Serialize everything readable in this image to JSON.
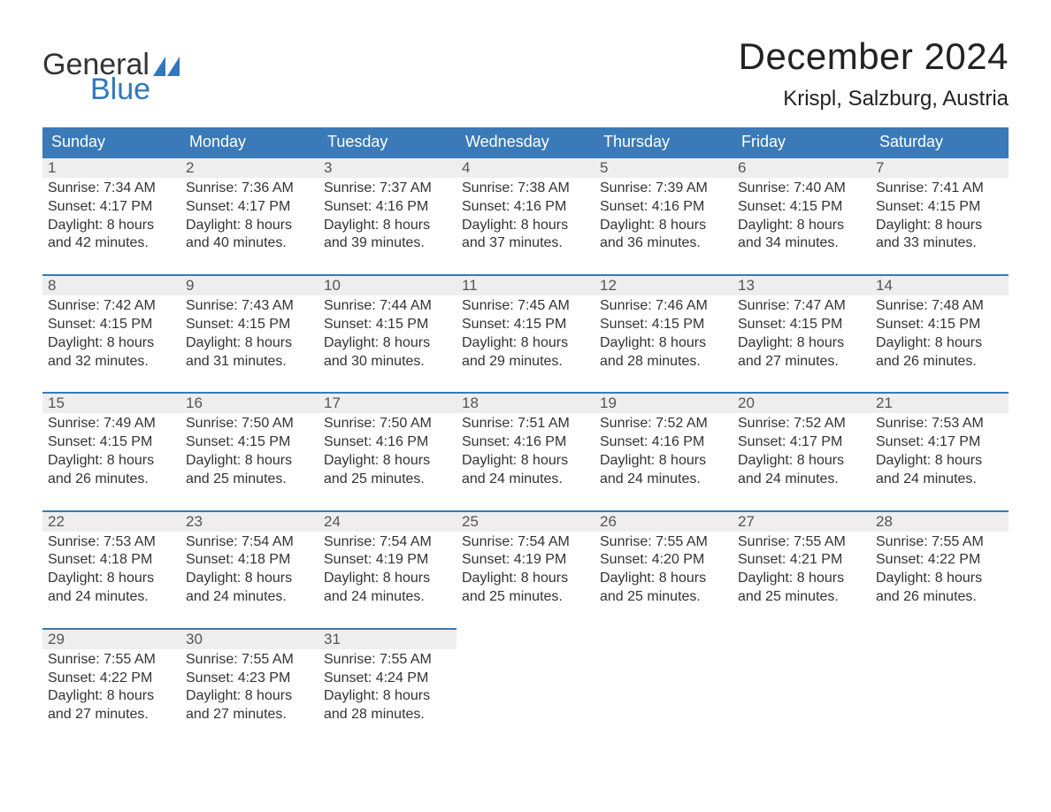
{
  "logo": {
    "text1": "General",
    "text2": "Blue",
    "color_text": "#333333",
    "color_blue": "#2f78bf"
  },
  "title": "December 2024",
  "location": "Krispl, Salzburg, Austria",
  "colors": {
    "header_bg": "#3a7ab8",
    "header_text": "#ffffff",
    "daynum_bg": "#eeeeee",
    "daynum_border": "#3a7ab8",
    "body_text": "#333333",
    "page_bg": "#ffffff"
  },
  "typography": {
    "title_fontsize": 42,
    "location_fontsize": 24,
    "header_fontsize": 18,
    "daynum_fontsize": 17,
    "content_fontsize": 16
  },
  "daysOfWeek": [
    "Sunday",
    "Monday",
    "Tuesday",
    "Wednesday",
    "Thursday",
    "Friday",
    "Saturday"
  ],
  "weeks": [
    [
      {
        "num": "1",
        "sunrise": "Sunrise: 7:34 AM",
        "sunset": "Sunset: 4:17 PM",
        "dl1": "Daylight: 8 hours",
        "dl2": "and 42 minutes."
      },
      {
        "num": "2",
        "sunrise": "Sunrise: 7:36 AM",
        "sunset": "Sunset: 4:17 PM",
        "dl1": "Daylight: 8 hours",
        "dl2": "and 40 minutes."
      },
      {
        "num": "3",
        "sunrise": "Sunrise: 7:37 AM",
        "sunset": "Sunset: 4:16 PM",
        "dl1": "Daylight: 8 hours",
        "dl2": "and 39 minutes."
      },
      {
        "num": "4",
        "sunrise": "Sunrise: 7:38 AM",
        "sunset": "Sunset: 4:16 PM",
        "dl1": "Daylight: 8 hours",
        "dl2": "and 37 minutes."
      },
      {
        "num": "5",
        "sunrise": "Sunrise: 7:39 AM",
        "sunset": "Sunset: 4:16 PM",
        "dl1": "Daylight: 8 hours",
        "dl2": "and 36 minutes."
      },
      {
        "num": "6",
        "sunrise": "Sunrise: 7:40 AM",
        "sunset": "Sunset: 4:15 PM",
        "dl1": "Daylight: 8 hours",
        "dl2": "and 34 minutes."
      },
      {
        "num": "7",
        "sunrise": "Sunrise: 7:41 AM",
        "sunset": "Sunset: 4:15 PM",
        "dl1": "Daylight: 8 hours",
        "dl2": "and 33 minutes."
      }
    ],
    [
      {
        "num": "8",
        "sunrise": "Sunrise: 7:42 AM",
        "sunset": "Sunset: 4:15 PM",
        "dl1": "Daylight: 8 hours",
        "dl2": "and 32 minutes."
      },
      {
        "num": "9",
        "sunrise": "Sunrise: 7:43 AM",
        "sunset": "Sunset: 4:15 PM",
        "dl1": "Daylight: 8 hours",
        "dl2": "and 31 minutes."
      },
      {
        "num": "10",
        "sunrise": "Sunrise: 7:44 AM",
        "sunset": "Sunset: 4:15 PM",
        "dl1": "Daylight: 8 hours",
        "dl2": "and 30 minutes."
      },
      {
        "num": "11",
        "sunrise": "Sunrise: 7:45 AM",
        "sunset": "Sunset: 4:15 PM",
        "dl1": "Daylight: 8 hours",
        "dl2": "and 29 minutes."
      },
      {
        "num": "12",
        "sunrise": "Sunrise: 7:46 AM",
        "sunset": "Sunset: 4:15 PM",
        "dl1": "Daylight: 8 hours",
        "dl2": "and 28 minutes."
      },
      {
        "num": "13",
        "sunrise": "Sunrise: 7:47 AM",
        "sunset": "Sunset: 4:15 PM",
        "dl1": "Daylight: 8 hours",
        "dl2": "and 27 minutes."
      },
      {
        "num": "14",
        "sunrise": "Sunrise: 7:48 AM",
        "sunset": "Sunset: 4:15 PM",
        "dl1": "Daylight: 8 hours",
        "dl2": "and 26 minutes."
      }
    ],
    [
      {
        "num": "15",
        "sunrise": "Sunrise: 7:49 AM",
        "sunset": "Sunset: 4:15 PM",
        "dl1": "Daylight: 8 hours",
        "dl2": "and 26 minutes."
      },
      {
        "num": "16",
        "sunrise": "Sunrise: 7:50 AM",
        "sunset": "Sunset: 4:15 PM",
        "dl1": "Daylight: 8 hours",
        "dl2": "and 25 minutes."
      },
      {
        "num": "17",
        "sunrise": "Sunrise: 7:50 AM",
        "sunset": "Sunset: 4:16 PM",
        "dl1": "Daylight: 8 hours",
        "dl2": "and 25 minutes."
      },
      {
        "num": "18",
        "sunrise": "Sunrise: 7:51 AM",
        "sunset": "Sunset: 4:16 PM",
        "dl1": "Daylight: 8 hours",
        "dl2": "and 24 minutes."
      },
      {
        "num": "19",
        "sunrise": "Sunrise: 7:52 AM",
        "sunset": "Sunset: 4:16 PM",
        "dl1": "Daylight: 8 hours",
        "dl2": "and 24 minutes."
      },
      {
        "num": "20",
        "sunrise": "Sunrise: 7:52 AM",
        "sunset": "Sunset: 4:17 PM",
        "dl1": "Daylight: 8 hours",
        "dl2": "and 24 minutes."
      },
      {
        "num": "21",
        "sunrise": "Sunrise: 7:53 AM",
        "sunset": "Sunset: 4:17 PM",
        "dl1": "Daylight: 8 hours",
        "dl2": "and 24 minutes."
      }
    ],
    [
      {
        "num": "22",
        "sunrise": "Sunrise: 7:53 AM",
        "sunset": "Sunset: 4:18 PM",
        "dl1": "Daylight: 8 hours",
        "dl2": "and 24 minutes."
      },
      {
        "num": "23",
        "sunrise": "Sunrise: 7:54 AM",
        "sunset": "Sunset: 4:18 PM",
        "dl1": "Daylight: 8 hours",
        "dl2": "and 24 minutes."
      },
      {
        "num": "24",
        "sunrise": "Sunrise: 7:54 AM",
        "sunset": "Sunset: 4:19 PM",
        "dl1": "Daylight: 8 hours",
        "dl2": "and 24 minutes."
      },
      {
        "num": "25",
        "sunrise": "Sunrise: 7:54 AM",
        "sunset": "Sunset: 4:19 PM",
        "dl1": "Daylight: 8 hours",
        "dl2": "and 25 minutes."
      },
      {
        "num": "26",
        "sunrise": "Sunrise: 7:55 AM",
        "sunset": "Sunset: 4:20 PM",
        "dl1": "Daylight: 8 hours",
        "dl2": "and 25 minutes."
      },
      {
        "num": "27",
        "sunrise": "Sunrise: 7:55 AM",
        "sunset": "Sunset: 4:21 PM",
        "dl1": "Daylight: 8 hours",
        "dl2": "and 25 minutes."
      },
      {
        "num": "28",
        "sunrise": "Sunrise: 7:55 AM",
        "sunset": "Sunset: 4:22 PM",
        "dl1": "Daylight: 8 hours",
        "dl2": "and 26 minutes."
      }
    ],
    [
      {
        "num": "29",
        "sunrise": "Sunrise: 7:55 AM",
        "sunset": "Sunset: 4:22 PM",
        "dl1": "Daylight: 8 hours",
        "dl2": "and 27 minutes."
      },
      {
        "num": "30",
        "sunrise": "Sunrise: 7:55 AM",
        "sunset": "Sunset: 4:23 PM",
        "dl1": "Daylight: 8 hours",
        "dl2": "and 27 minutes."
      },
      {
        "num": "31",
        "sunrise": "Sunrise: 7:55 AM",
        "sunset": "Sunset: 4:24 PM",
        "dl1": "Daylight: 8 hours",
        "dl2": "and 28 minutes."
      },
      null,
      null,
      null,
      null
    ]
  ]
}
